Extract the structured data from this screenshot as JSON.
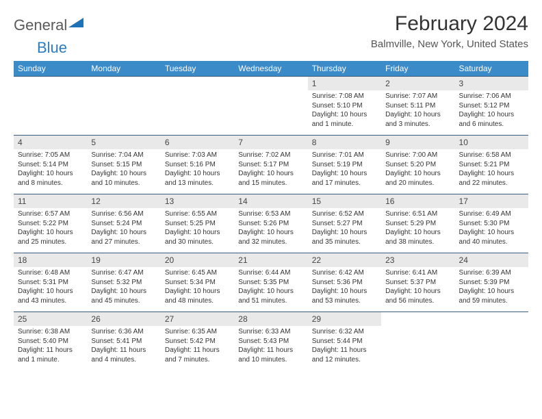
{
  "logo": {
    "text1": "General",
    "text2": "Blue",
    "triangle_color": "#1e73b8"
  },
  "header": {
    "month_title": "February 2024",
    "location": "Balmville, New York, United States"
  },
  "style": {
    "header_bg": "#3b8bc8",
    "header_text_color": "#ffffff",
    "daynum_bg": "#e9e9e9",
    "row_border_color": "#3a5a7a",
    "body_text_color": "#333333",
    "font_family": "Arial",
    "title_fontsize_pt": 22,
    "location_fontsize_pt": 11,
    "dayheader_fontsize_pt": 9,
    "cell_fontsize_pt": 7.5
  },
  "day_headers": [
    "Sunday",
    "Monday",
    "Tuesday",
    "Wednesday",
    "Thursday",
    "Friday",
    "Saturday"
  ],
  "weeks": [
    [
      {
        "empty": true
      },
      {
        "empty": true
      },
      {
        "empty": true
      },
      {
        "empty": true
      },
      {
        "num": "1",
        "sunrise": "Sunrise: 7:08 AM",
        "sunset": "Sunset: 5:10 PM",
        "daylight": "Daylight: 10 hours and 1 minute."
      },
      {
        "num": "2",
        "sunrise": "Sunrise: 7:07 AM",
        "sunset": "Sunset: 5:11 PM",
        "daylight": "Daylight: 10 hours and 3 minutes."
      },
      {
        "num": "3",
        "sunrise": "Sunrise: 7:06 AM",
        "sunset": "Sunset: 5:12 PM",
        "daylight": "Daylight: 10 hours and 6 minutes."
      }
    ],
    [
      {
        "num": "4",
        "sunrise": "Sunrise: 7:05 AM",
        "sunset": "Sunset: 5:14 PM",
        "daylight": "Daylight: 10 hours and 8 minutes."
      },
      {
        "num": "5",
        "sunrise": "Sunrise: 7:04 AM",
        "sunset": "Sunset: 5:15 PM",
        "daylight": "Daylight: 10 hours and 10 minutes."
      },
      {
        "num": "6",
        "sunrise": "Sunrise: 7:03 AM",
        "sunset": "Sunset: 5:16 PM",
        "daylight": "Daylight: 10 hours and 13 minutes."
      },
      {
        "num": "7",
        "sunrise": "Sunrise: 7:02 AM",
        "sunset": "Sunset: 5:17 PM",
        "daylight": "Daylight: 10 hours and 15 minutes."
      },
      {
        "num": "8",
        "sunrise": "Sunrise: 7:01 AM",
        "sunset": "Sunset: 5:19 PM",
        "daylight": "Daylight: 10 hours and 17 minutes."
      },
      {
        "num": "9",
        "sunrise": "Sunrise: 7:00 AM",
        "sunset": "Sunset: 5:20 PM",
        "daylight": "Daylight: 10 hours and 20 minutes."
      },
      {
        "num": "10",
        "sunrise": "Sunrise: 6:58 AM",
        "sunset": "Sunset: 5:21 PM",
        "daylight": "Daylight: 10 hours and 22 minutes."
      }
    ],
    [
      {
        "num": "11",
        "sunrise": "Sunrise: 6:57 AM",
        "sunset": "Sunset: 5:22 PM",
        "daylight": "Daylight: 10 hours and 25 minutes."
      },
      {
        "num": "12",
        "sunrise": "Sunrise: 6:56 AM",
        "sunset": "Sunset: 5:24 PM",
        "daylight": "Daylight: 10 hours and 27 minutes."
      },
      {
        "num": "13",
        "sunrise": "Sunrise: 6:55 AM",
        "sunset": "Sunset: 5:25 PM",
        "daylight": "Daylight: 10 hours and 30 minutes."
      },
      {
        "num": "14",
        "sunrise": "Sunrise: 6:53 AM",
        "sunset": "Sunset: 5:26 PM",
        "daylight": "Daylight: 10 hours and 32 minutes."
      },
      {
        "num": "15",
        "sunrise": "Sunrise: 6:52 AM",
        "sunset": "Sunset: 5:27 PM",
        "daylight": "Daylight: 10 hours and 35 minutes."
      },
      {
        "num": "16",
        "sunrise": "Sunrise: 6:51 AM",
        "sunset": "Sunset: 5:29 PM",
        "daylight": "Daylight: 10 hours and 38 minutes."
      },
      {
        "num": "17",
        "sunrise": "Sunrise: 6:49 AM",
        "sunset": "Sunset: 5:30 PM",
        "daylight": "Daylight: 10 hours and 40 minutes."
      }
    ],
    [
      {
        "num": "18",
        "sunrise": "Sunrise: 6:48 AM",
        "sunset": "Sunset: 5:31 PM",
        "daylight": "Daylight: 10 hours and 43 minutes."
      },
      {
        "num": "19",
        "sunrise": "Sunrise: 6:47 AM",
        "sunset": "Sunset: 5:32 PM",
        "daylight": "Daylight: 10 hours and 45 minutes."
      },
      {
        "num": "20",
        "sunrise": "Sunrise: 6:45 AM",
        "sunset": "Sunset: 5:34 PM",
        "daylight": "Daylight: 10 hours and 48 minutes."
      },
      {
        "num": "21",
        "sunrise": "Sunrise: 6:44 AM",
        "sunset": "Sunset: 5:35 PM",
        "daylight": "Daylight: 10 hours and 51 minutes."
      },
      {
        "num": "22",
        "sunrise": "Sunrise: 6:42 AM",
        "sunset": "Sunset: 5:36 PM",
        "daylight": "Daylight: 10 hours and 53 minutes."
      },
      {
        "num": "23",
        "sunrise": "Sunrise: 6:41 AM",
        "sunset": "Sunset: 5:37 PM",
        "daylight": "Daylight: 10 hours and 56 minutes."
      },
      {
        "num": "24",
        "sunrise": "Sunrise: 6:39 AM",
        "sunset": "Sunset: 5:39 PM",
        "daylight": "Daylight: 10 hours and 59 minutes."
      }
    ],
    [
      {
        "num": "25",
        "sunrise": "Sunrise: 6:38 AM",
        "sunset": "Sunset: 5:40 PM",
        "daylight": "Daylight: 11 hours and 1 minute."
      },
      {
        "num": "26",
        "sunrise": "Sunrise: 6:36 AM",
        "sunset": "Sunset: 5:41 PM",
        "daylight": "Daylight: 11 hours and 4 minutes."
      },
      {
        "num": "27",
        "sunrise": "Sunrise: 6:35 AM",
        "sunset": "Sunset: 5:42 PM",
        "daylight": "Daylight: 11 hours and 7 minutes."
      },
      {
        "num": "28",
        "sunrise": "Sunrise: 6:33 AM",
        "sunset": "Sunset: 5:43 PM",
        "daylight": "Daylight: 11 hours and 10 minutes."
      },
      {
        "num": "29",
        "sunrise": "Sunrise: 6:32 AM",
        "sunset": "Sunset: 5:44 PM",
        "daylight": "Daylight: 11 hours and 12 minutes."
      },
      {
        "empty": true
      },
      {
        "empty": true
      }
    ]
  ]
}
